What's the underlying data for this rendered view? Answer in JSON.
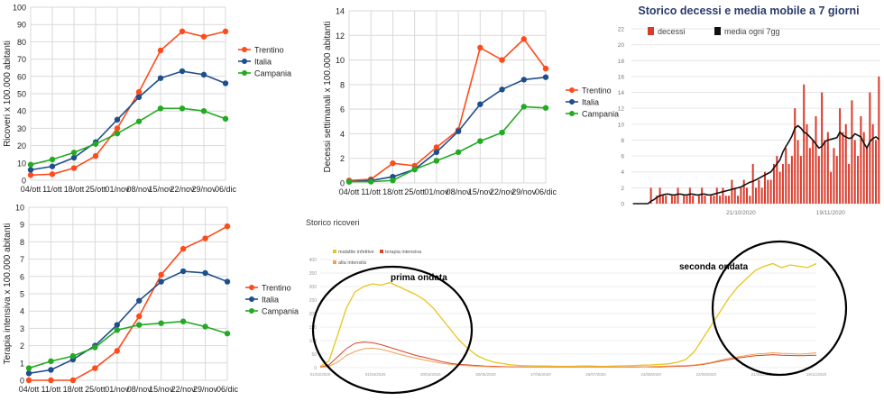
{
  "weeks": [
    "04/ott",
    "11/ott",
    "18/ott",
    "25/ott",
    "01/nov",
    "08/nov",
    "15/nov",
    "22/nov",
    "29/nov",
    "06/dic"
  ],
  "colors": {
    "trentino": "#ff4a1a",
    "italia": "#1f4e8c",
    "campania": "#22aa22",
    "malattie": "#e8c51e",
    "terapia": "#d9442a",
    "alta": "#f0a050",
    "decessi": "#d93a2a",
    "media": "#111111"
  },
  "chart_data": [
    {
      "id": "ricoveri",
      "type": "line",
      "ylabel": "Ricoveri x 100.000 abitanti",
      "ylim": [
        0,
        100
      ],
      "yticks": [
        0,
        10,
        20,
        30,
        40,
        50,
        60,
        70,
        80,
        90,
        100
      ],
      "series": [
        {
          "name": "Trentino",
          "values": [
            3,
            3.5,
            7,
            14,
            30,
            51,
            75,
            86,
            83,
            86
          ]
        },
        {
          "name": "Italia",
          "values": [
            6,
            8,
            13,
            22,
            35,
            48,
            59,
            63,
            61,
            56
          ]
        },
        {
          "name": "Campania",
          "values": [
            9,
            12,
            16,
            21,
            27,
            34,
            41.5,
            41.5,
            40,
            35.5
          ]
        }
      ]
    },
    {
      "id": "decessi_settimanali",
      "type": "line",
      "ylabel": "Decessi settimanali x 100.000 abitanti",
      "ylim": [
        0,
        14
      ],
      "yticks": [
        0,
        2,
        4,
        6,
        8,
        10,
        12,
        14
      ],
      "series": [
        {
          "name": "Trentino",
          "values": [
            0.2,
            0.3,
            1.6,
            1.4,
            2.9,
            4.3,
            11,
            10,
            11.7,
            9.3
          ]
        },
        {
          "name": "Italia",
          "values": [
            0.1,
            0.2,
            0.5,
            1.1,
            2.5,
            4.2,
            6.4,
            7.6,
            8.4,
            8.6
          ]
        },
        {
          "name": "Campania",
          "values": [
            0.1,
            0.1,
            0.2,
            1.1,
            1.8,
            2.5,
            3.4,
            4.1,
            6.2,
            6.1
          ]
        }
      ]
    },
    {
      "id": "terapia_intensiva",
      "type": "line",
      "ylabel": "Terapia intensiva x 100.000 abitanti",
      "ylim": [
        0,
        10
      ],
      "yticks": [
        0,
        1,
        2,
        3,
        4,
        5,
        6,
        7,
        8,
        9,
        10
      ],
      "series": [
        {
          "name": "Trentino",
          "values": [
            0,
            0,
            0,
            0.7,
            1.7,
            3.7,
            6.1,
            7.6,
            8.2,
            8.9
          ]
        },
        {
          "name": "Italia",
          "values": [
            0.4,
            0.6,
            1.2,
            2.0,
            3.2,
            4.6,
            5.7,
            6.3,
            6.2,
            5.7
          ]
        },
        {
          "name": "Campania",
          "values": [
            0.7,
            1.1,
            1.4,
            1.9,
            2.9,
            3.2,
            3.3,
            3.4,
            3.1,
            2.7
          ]
        }
      ]
    },
    {
      "id": "storico_decessi",
      "type": "bar",
      "title": "Storico decessi e media mobile a 7 giorni",
      "ylim": [
        0,
        22
      ],
      "yticks": [
        0,
        2,
        4,
        6,
        8,
        10,
        12,
        14,
        16,
        18,
        20,
        22
      ],
      "xticklabels": [
        "21/10/2020",
        "19/11/2020"
      ],
      "series": [
        {
          "name": "decessi",
          "values": [
            0,
            0,
            0,
            0,
            0,
            0,
            2,
            0,
            1,
            2,
            1,
            1,
            0,
            1,
            1,
            2,
            0,
            1,
            1,
            2,
            1,
            0,
            1,
            2,
            1,
            0,
            1,
            1,
            2,
            1,
            2,
            1,
            1,
            3,
            2,
            1,
            2,
            3,
            2,
            1,
            5,
            2,
            3,
            2,
            4,
            3,
            3,
            5,
            6,
            4,
            5,
            7,
            5,
            6,
            12,
            8,
            6,
            15,
            10,
            7,
            8,
            11,
            6,
            14,
            8,
            9,
            4,
            7,
            6,
            12,
            9,
            10,
            5,
            13,
            8,
            6,
            11,
            9,
            7,
            14,
            10,
            8,
            16
          ]
        },
        {
          "name": "media ogni 7gg",
          "values": [
            0,
            0,
            0,
            0,
            0,
            0,
            0.3,
            0.5,
            0.8,
            1,
            1.1,
            1.2,
            1.2,
            1.1,
            1.1,
            1.2,
            1.2,
            1.1,
            1.1,
            1.2,
            1.2,
            1.1,
            1.1,
            1.2,
            1.2,
            1.1,
            1.1,
            1.2,
            1.3,
            1.4,
            1.5,
            1.6,
            1.7,
            1.8,
            1.9,
            2.0,
            2.1,
            2.3,
            2.5,
            2.7,
            2.8,
            3.0,
            3.2,
            3.4,
            3.6,
            3.8,
            4.0,
            4.5,
            5.0,
            5.5,
            6.5,
            7.2,
            7.8,
            8.5,
            9.5,
            9.8,
            9.5,
            9.0,
            8.8,
            8.4,
            8.0,
            7.5,
            7.0,
            7.2,
            7.8,
            8.0,
            8.1,
            8.2,
            8.3,
            9.0,
            8.6,
            8.4,
            8.2,
            8.3,
            8.8,
            8.6,
            8.4,
            7.6,
            7.0,
            7.8,
            8.2,
            8.4,
            8.1
          ]
        }
      ]
    },
    {
      "id": "storico_ricoveri",
      "type": "area",
      "title": "Storico ricoveri",
      "ylim": [
        0,
        400
      ],
      "yticks": [
        0,
        50,
        100,
        150,
        200,
        250,
        300,
        350,
        400
      ],
      "xticklabels": [
        "01/03/2020",
        "01/04/2020",
        "30/04/2020",
        "30/05/2020",
        "27/06/2020",
        "26/07/2020",
        "24/08/2020",
        "22/09/2020",
        "21/10/2020",
        "19/11/2020"
      ],
      "series": [
        {
          "name": "malattie infettive",
          "values": [
            5,
            25,
            120,
            220,
            280,
            300,
            310,
            305,
            315,
            300,
            285,
            270,
            250,
            220,
            180,
            140,
            100,
            70,
            45,
            30,
            20,
            15,
            10,
            8,
            7,
            6,
            6,
            5,
            5,
            5,
            6,
            6,
            5,
            5,
            6,
            7,
            8,
            9,
            10,
            12,
            14,
            20,
            30,
            60,
            110,
            160,
            210,
            260,
            300,
            330,
            360,
            375,
            385,
            370,
            380,
            375,
            370,
            385
          ]
        },
        {
          "name": "terapia intensiva",
          "values": [
            2,
            10,
            40,
            70,
            90,
            95,
            92,
            85,
            75,
            65,
            55,
            45,
            38,
            30,
            22,
            16,
            12,
            10,
            8,
            6,
            5,
            4,
            3,
            3,
            2,
            2,
            2,
            2,
            2,
            2,
            2,
            2,
            2,
            2,
            2,
            2,
            2,
            3,
            3,
            3,
            4,
            5,
            6,
            8,
            12,
            18,
            24,
            30,
            36,
            40,
            44,
            46,
            48,
            46,
            45,
            44,
            45,
            46
          ]
        },
        {
          "name": "alta intensità",
          "values": [
            1,
            5,
            20,
            45,
            60,
            70,
            72,
            68,
            60,
            50,
            42,
            35,
            28,
            22,
            16,
            12,
            9,
            7,
            5,
            4,
            3,
            3,
            2,
            2,
            2,
            2,
            2,
            2,
            2,
            2,
            2,
            2,
            2,
            2,
            2,
            2,
            3,
            3,
            4,
            5,
            6,
            7,
            8,
            10,
            14,
            20,
            28,
            35,
            40,
            45,
            50,
            52,
            55,
            53,
            52,
            50,
            52,
            55
          ]
        }
      ],
      "annotations": [
        "prima ondata",
        "seconda ondata"
      ]
    }
  ]
}
